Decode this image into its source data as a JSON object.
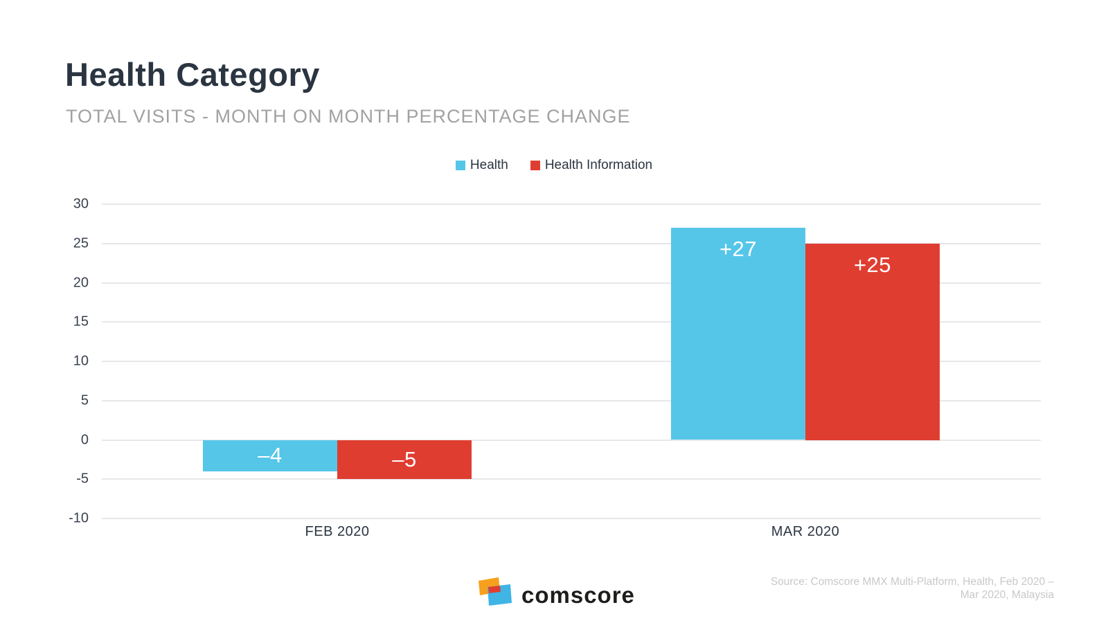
{
  "header": {
    "title": "Health Category",
    "subtitle": "TOTAL VISITS - MONTH ON MONTH PERCENTAGE CHANGE"
  },
  "chart_data": {
    "type": "bar",
    "title": "Health Category",
    "subtitle": "TOTAL VISITS - MONTH ON MONTH PERCENTAGE CHANGE",
    "categories": [
      "FEB 2020",
      "MAR 2020"
    ],
    "series": [
      {
        "name": "Health",
        "color": "#55c6e8",
        "values": [
          -4,
          27
        ],
        "labels": [
          "–4",
          "+27"
        ]
      },
      {
        "name": "Health Information",
        "color": "#e03d31",
        "values": [
          -5,
          25
        ],
        "labels": [
          "–5",
          "+25"
        ]
      }
    ],
    "ylim": [
      -10,
      30
    ],
    "ytick_step": 5,
    "yticks": [
      30,
      25,
      20,
      15,
      10,
      5,
      0,
      -5,
      -10
    ],
    "grid": true,
    "legend_position": "top-center",
    "value_label_color": "#ffffff",
    "gridline_color": "#e7e7ea"
  },
  "footer": {
    "brand": "comscore",
    "source_lines": [
      "Source: Comscore MMX Multi-Platform, Health, Feb 2020 –",
      "Mar 2020, Malaysia"
    ]
  }
}
